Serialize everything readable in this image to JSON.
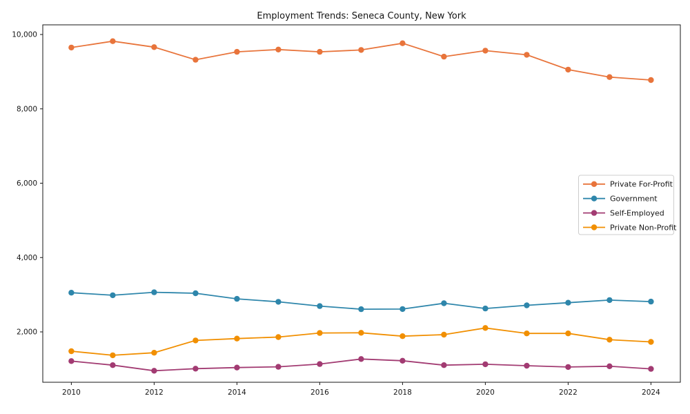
{
  "chart_data": {
    "type": "line",
    "title": "Employment Trends: Seneca County, New York",
    "xlabel": "",
    "ylabel": "",
    "grid": false,
    "legend_position": "center-right",
    "x": [
      2010,
      2011,
      2012,
      2013,
      2014,
      2015,
      2016,
      2017,
      2018,
      2019,
      2020,
      2021,
      2022,
      2023,
      2024
    ],
    "xlim": [
      2009.31,
      2024.71
    ],
    "ylim": [
      645,
      10260
    ],
    "x_ticks": [
      2010,
      2012,
      2014,
      2016,
      2018,
      2020,
      2022,
      2024
    ],
    "x_tick_labels": [
      "2010",
      "2012",
      "2014",
      "2016",
      "2018",
      "2020",
      "2022",
      "2024"
    ],
    "y_ticks": [
      2000,
      4000,
      6000,
      8000,
      10000
    ],
    "y_tick_labels": [
      "2,000",
      "4,000",
      "6,000",
      "8,000",
      "10,000"
    ],
    "series": [
      {
        "name": "Private For-Profit",
        "color": "#E8743B",
        "values": [
          9650,
          9820,
          9660,
          9320,
          9535,
          9595,
          9535,
          9585,
          9765,
          9405,
          9565,
          9455,
          9055,
          8855,
          8775
        ]
      },
      {
        "name": "Government",
        "color": "#2E86AB",
        "values": [
          3055,
          2985,
          3065,
          3040,
          2890,
          2810,
          2695,
          2610,
          2615,
          2770,
          2630,
          2715,
          2785,
          2855,
          2815
        ]
      },
      {
        "name": "Self-Employed",
        "color": "#A23B72",
        "values": [
          1215,
          1105,
          955,
          1010,
          1040,
          1060,
          1135,
          1270,
          1225,
          1105,
          1130,
          1090,
          1055,
          1075,
          1005
        ]
      },
      {
        "name": "Private Non-Profit",
        "color": "#F18F01",
        "values": [
          1480,
          1370,
          1440,
          1770,
          1820,
          1860,
          1970,
          1975,
          1885,
          1925,
          2105,
          1960,
          1960,
          1790,
          1730
        ]
      }
    ],
    "style": {
      "spine_color": "#151515",
      "background": "#ffffff",
      "legend_border": "#cccccc",
      "line_width": 1.8,
      "marker_radius": 4.2
    }
  }
}
